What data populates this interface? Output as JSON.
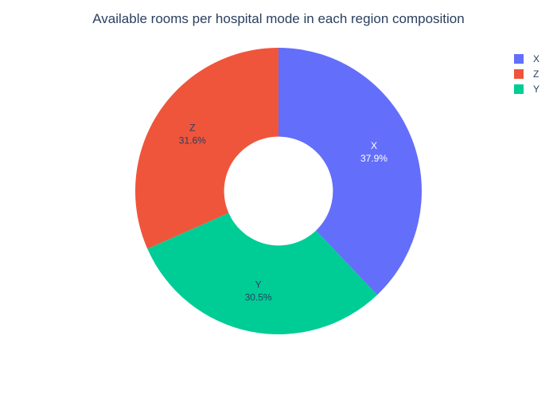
{
  "chart_data": {
    "type": "pie",
    "hole": 0.38,
    "title": "Available rooms per hospital mode in each region composition",
    "legend_position": "top-right",
    "slices": [
      {
        "label": "X",
        "value": 37.9,
        "percent_text": "37.9%",
        "color": "#636efa",
        "text_color": "#ffffff"
      },
      {
        "label": "Y",
        "value": 30.5,
        "percent_text": "30.5%",
        "color": "#00cc96",
        "text_color": "#2a3f5f"
      },
      {
        "label": "Z",
        "value": 31.6,
        "percent_text": "31.6%",
        "color": "#ef553b",
        "text_color": "#2a3f5f"
      }
    ],
    "legend": [
      "X",
      "Z",
      "Y"
    ]
  }
}
